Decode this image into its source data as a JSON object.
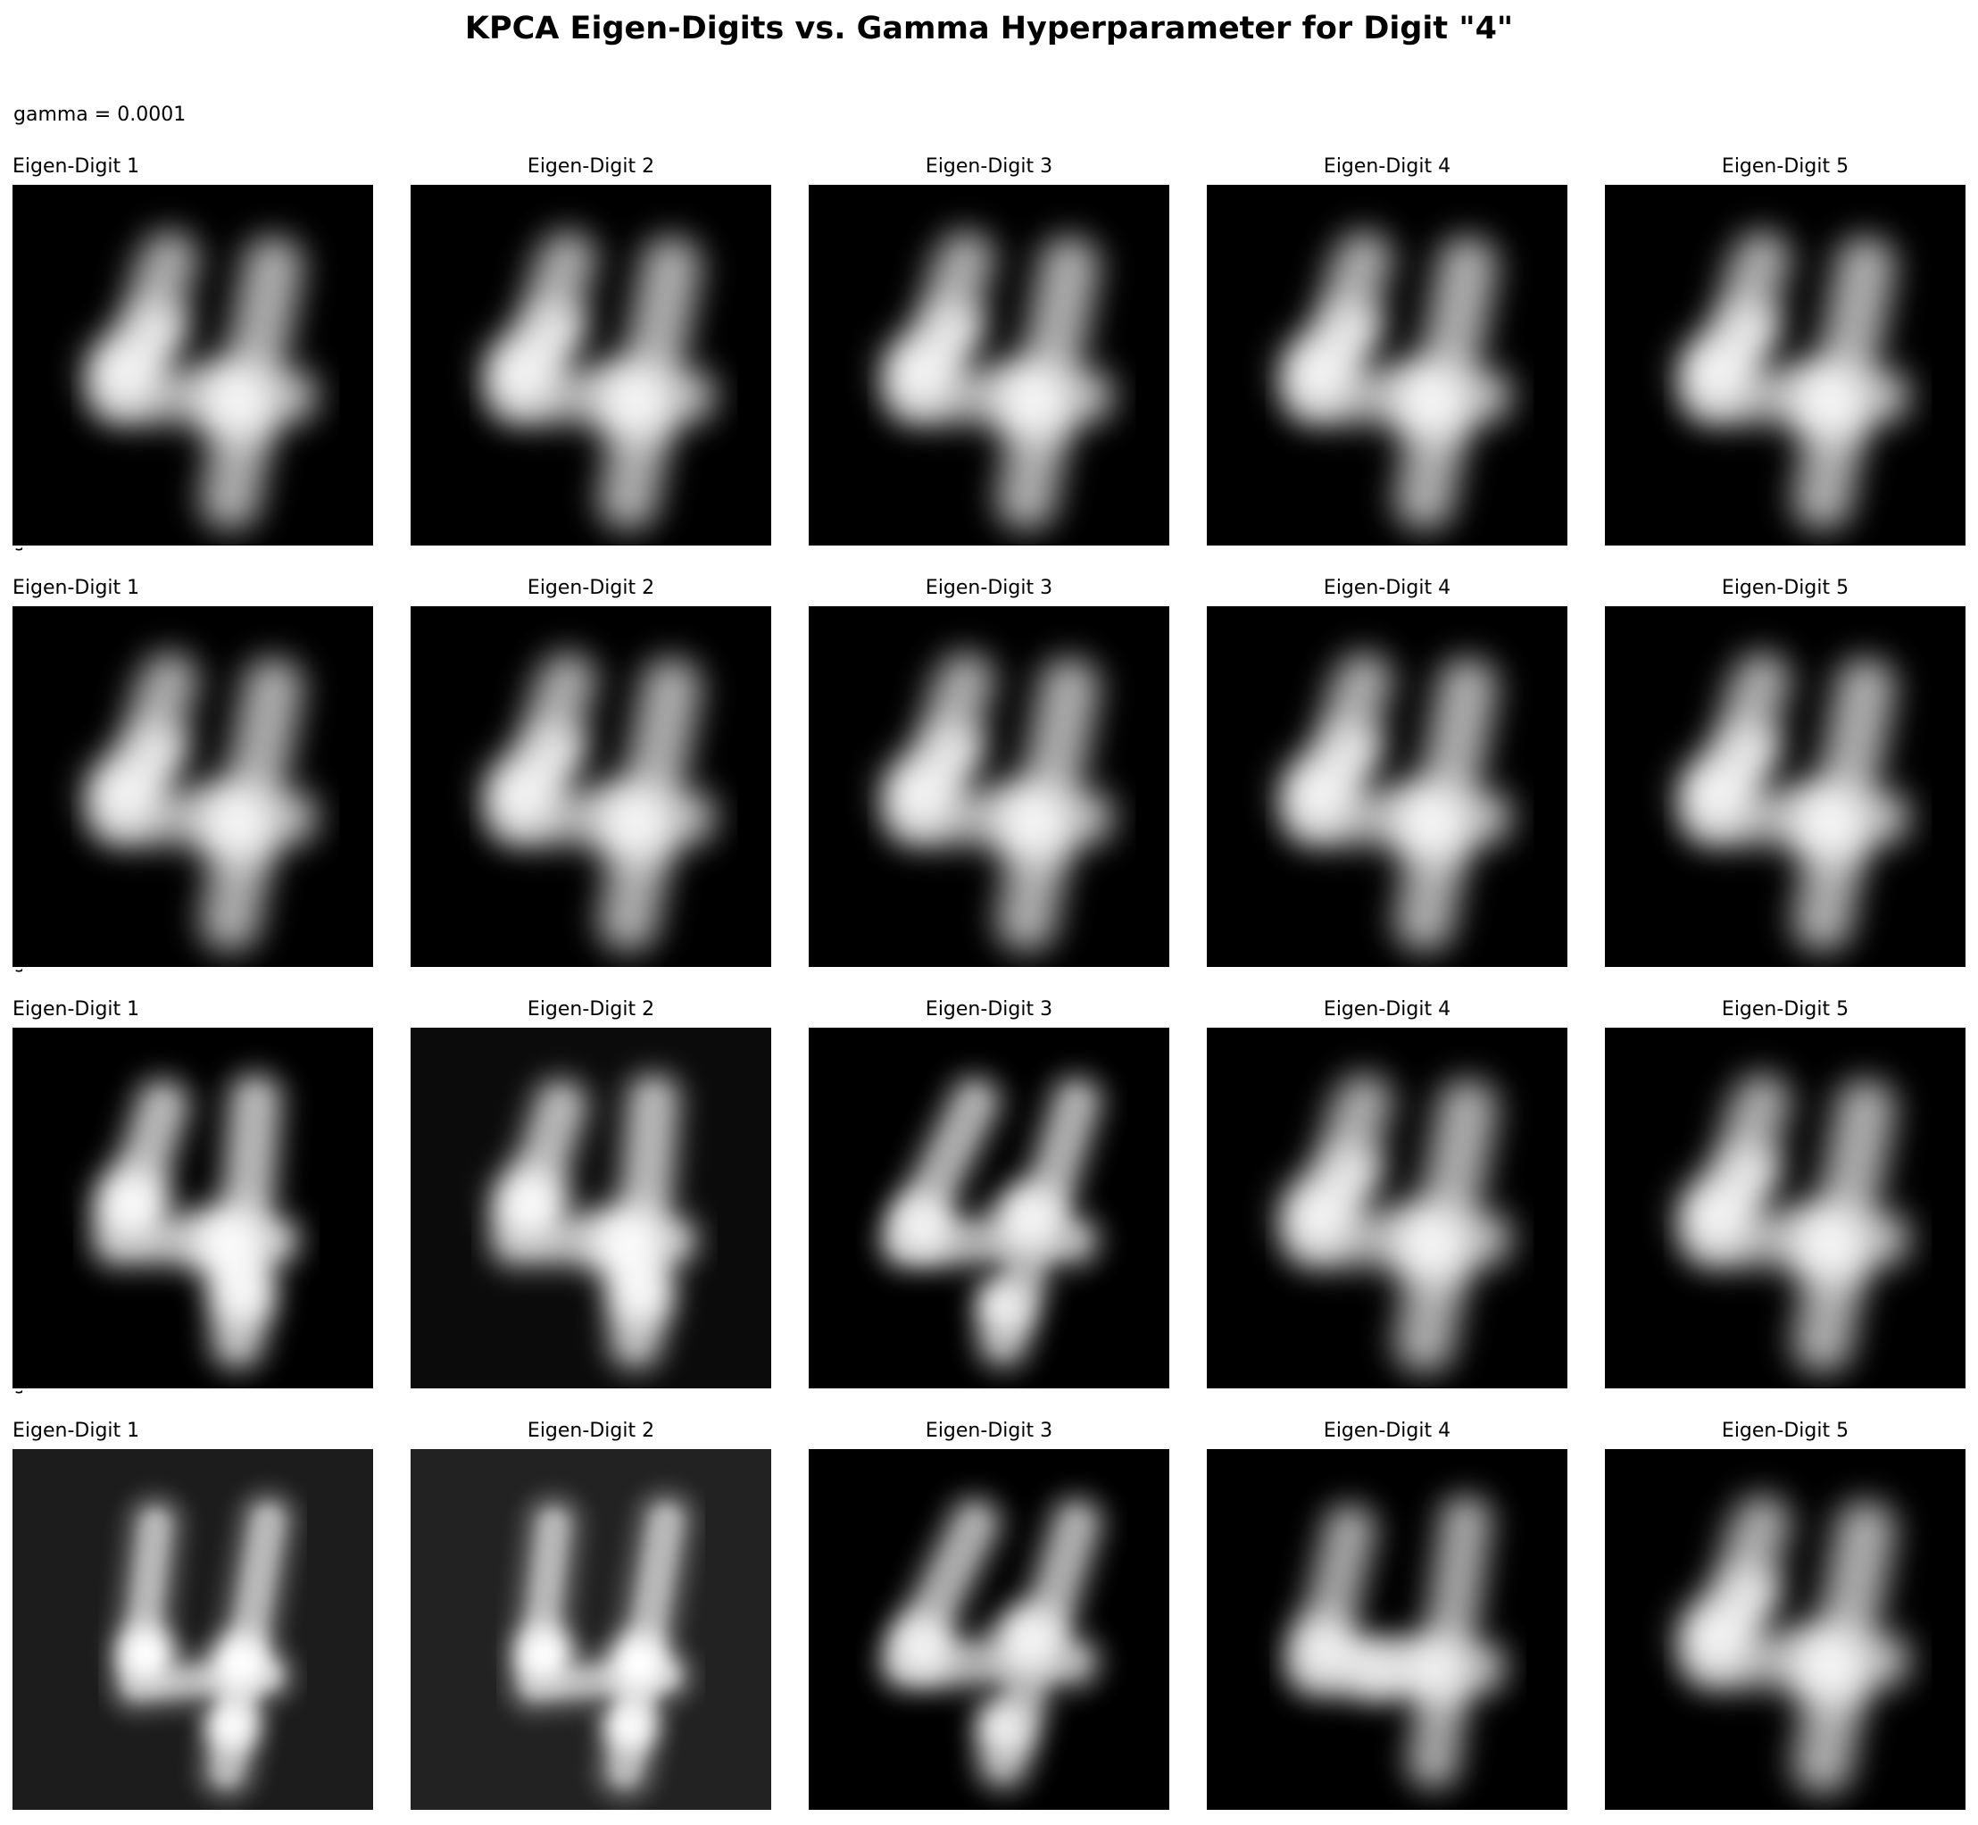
{
  "figure": {
    "title": "KPCA Eigen-Digits vs. Gamma Hyperparameter for Digit \"4\""
  },
  "rows": [
    {
      "label": "gamma = 0.0001",
      "panels": [
        {
          "title": "Eigen-Digit 1",
          "background": "#000000",
          "variant": "smooth"
        },
        {
          "title": "Eigen-Digit 2",
          "background": "#000000",
          "variant": "smooth"
        },
        {
          "title": "Eigen-Digit 3",
          "background": "#000000",
          "variant": "smooth"
        },
        {
          "title": "Eigen-Digit 4",
          "background": "#000000",
          "variant": "smooth"
        },
        {
          "title": "Eigen-Digit 5",
          "background": "#000000",
          "variant": "smooth"
        }
      ]
    },
    {
      "label": "g",
      "panels": [
        {
          "title": "Eigen-Digit 1",
          "background": "#000000",
          "variant": "smooth"
        },
        {
          "title": "Eigen-Digit 2",
          "background": "#000000",
          "variant": "smooth"
        },
        {
          "title": "Eigen-Digit 3",
          "background": "#000000",
          "variant": "smooth"
        },
        {
          "title": "Eigen-Digit 4",
          "background": "#000000",
          "variant": "smooth"
        },
        {
          "title": "Eigen-Digit 5",
          "background": "#000000",
          "variant": "smooth"
        }
      ]
    },
    {
      "label": "g",
      "panels": [
        {
          "title": "Eigen-Digit 1",
          "background": "#000000",
          "variant": "bright"
        },
        {
          "title": "Eigen-Digit 2",
          "background": "#0b0b0b",
          "variant": "bright"
        },
        {
          "title": "Eigen-Digit 3",
          "background": "#000000",
          "variant": "slant"
        },
        {
          "title": "Eigen-Digit 4",
          "background": "#000000",
          "variant": "smooth"
        },
        {
          "title": "Eigen-Digit 5",
          "background": "#000000",
          "variant": "smooth"
        }
      ]
    },
    {
      "label": "g",
      "panels": [
        {
          "title": "Eigen-Digit 1",
          "background": "#1c1c1c",
          "variant": "sharp"
        },
        {
          "title": "Eigen-Digit 2",
          "background": "#222222",
          "variant": "sharp"
        },
        {
          "title": "Eigen-Digit 3",
          "background": "#000000",
          "variant": "slant"
        },
        {
          "title": "Eigen-Digit 4",
          "background": "#000000",
          "variant": "wide"
        },
        {
          "title": "Eigen-Digit 5",
          "background": "#000000",
          "variant": "smooth"
        }
      ]
    }
  ]
}
